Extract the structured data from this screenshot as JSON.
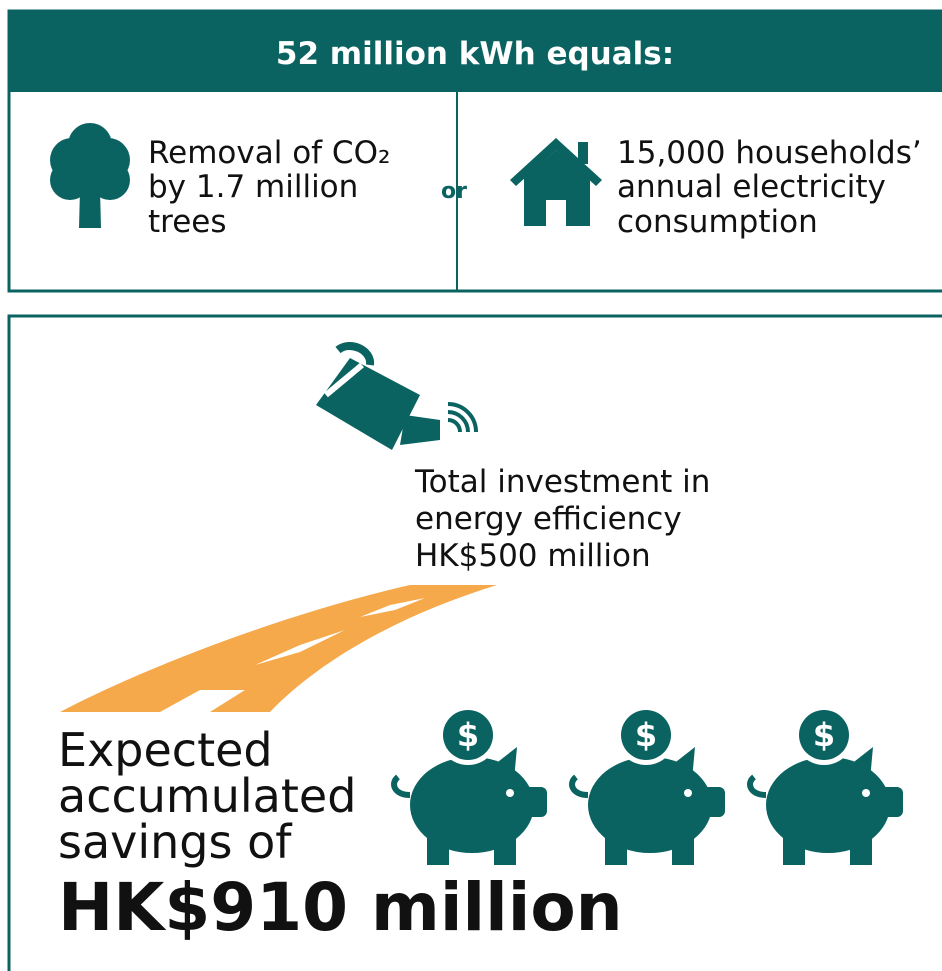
{
  "header": {
    "title": "52 million kWh equals:"
  },
  "equivalents": [
    {
      "lines": [
        "Removal of CO₂",
        "by 1.7 million",
        "trees"
      ]
    },
    {
      "lines": [
        "15,000 households’",
        "annual electricity",
        "consumption"
      ]
    }
  ],
  "separator": "or",
  "investment": {
    "lines": [
      "Total investment in",
      "energy efficiency",
      "HK$500 million"
    ]
  },
  "savings": {
    "lines": [
      "Expected",
      "accumulated",
      "savings of"
    ],
    "amount": "HK$910 million"
  }
}
